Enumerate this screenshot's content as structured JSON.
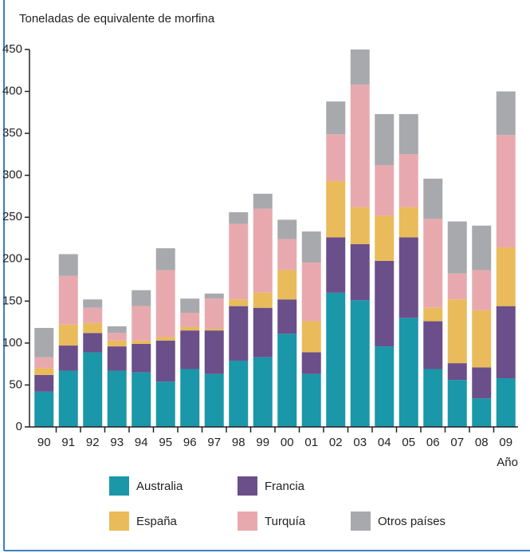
{
  "chart_data": {
    "type": "stacked_bar",
    "title": "Toneladas de equivalente de morfina",
    "x_label": "Año",
    "categories": [
      "90",
      "91",
      "92",
      "93",
      "94",
      "95",
      "96",
      "97",
      "98",
      "99",
      "00",
      "01",
      "02",
      "03",
      "04",
      "05",
      "06",
      "07",
      "08",
      "09"
    ],
    "series": [
      {
        "name": "Australia",
        "color": "#1a97a8",
        "values": [
          42,
          67,
          89,
          67,
          65,
          54,
          69,
          63,
          79,
          83,
          111,
          63,
          160,
          151,
          96,
          130,
          69,
          56,
          34,
          58
        ]
      },
      {
        "name": "Francia",
        "color": "#6a4f8a",
        "values": [
          20,
          30,
          23,
          29,
          34,
          49,
          46,
          52,
          65,
          59,
          41,
          26,
          66,
          67,
          102,
          96,
          57,
          20,
          37,
          86
        ]
      },
      {
        "name": "España",
        "color": "#e9bb5a",
        "values": [
          8,
          25,
          12,
          7,
          4,
          4,
          4,
          2,
          8,
          18,
          35,
          37,
          67,
          44,
          54,
          36,
          16,
          76,
          68,
          70
        ]
      },
      {
        "name": "Turquía",
        "color": "#e8a9ae",
        "values": [
          13,
          58,
          18,
          9,
          41,
          80,
          17,
          36,
          90,
          100,
          37,
          70,
          56,
          146,
          60,
          63,
          106,
          31,
          48,
          134
        ]
      },
      {
        "name": "Otros países",
        "color": "#a8a9ad",
        "values": [
          35,
          26,
          10,
          8,
          19,
          26,
          17,
          6,
          14,
          18,
          23,
          37,
          39,
          42,
          61,
          48,
          48,
          62,
          53,
          52
        ]
      }
    ],
    "ylim": [
      0,
      450
    ],
    "yticks": [
      0,
      50,
      100,
      150,
      200,
      250,
      300,
      350,
      400,
      450
    ]
  }
}
